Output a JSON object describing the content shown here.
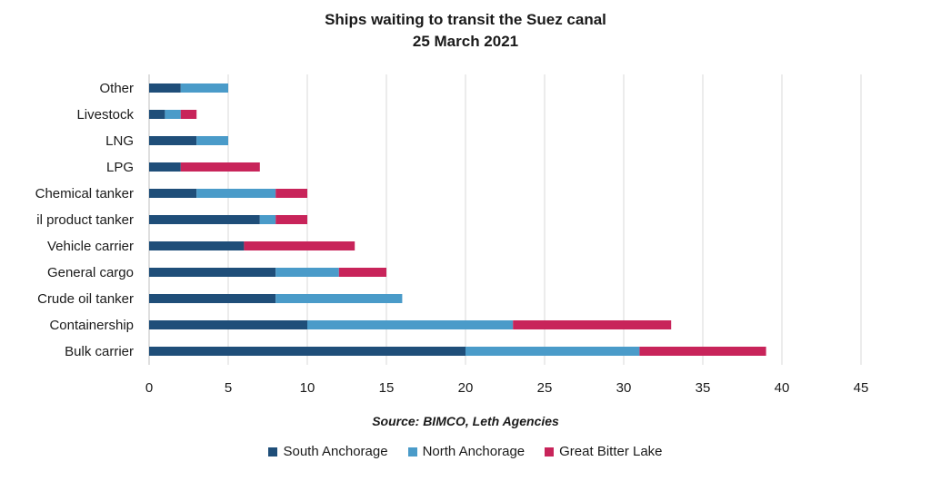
{
  "chart_data": {
    "type": "bar",
    "orientation": "horizontal",
    "stacked": true,
    "title": "Ships waiting to transit the Suez canal",
    "subtitle": "25 March 2021",
    "source": "Source: BIMCO, Leth Agencies",
    "categories": [
      "Other",
      "Livestock",
      "LNG",
      "LPG",
      "Chemical tanker",
      "il product tanker",
      "Vehicle carrier",
      "General cargo",
      "Crude oil tanker",
      "Containership",
      "Bulk carrier"
    ],
    "series": [
      {
        "name": "South Anchorage",
        "color": "#1f4e79",
        "values": [
          2,
          1,
          3,
          2,
          3,
          7,
          6,
          8,
          8,
          10,
          20
        ]
      },
      {
        "name": "North Anchorage",
        "color": "#4a9bc9",
        "values": [
          3,
          1,
          2,
          0,
          5,
          1,
          0,
          4,
          8,
          13,
          11
        ]
      },
      {
        "name": "Great Bitter Lake",
        "color": "#c8245a",
        "values": [
          0,
          1,
          0,
          5,
          2,
          2,
          7,
          3,
          0,
          10,
          8
        ]
      }
    ],
    "xlim": [
      0,
      45
    ],
    "xticks": [
      0,
      5,
      10,
      15,
      20,
      25,
      30,
      35,
      40,
      45
    ],
    "grid": true,
    "legend_position": "bottom"
  }
}
